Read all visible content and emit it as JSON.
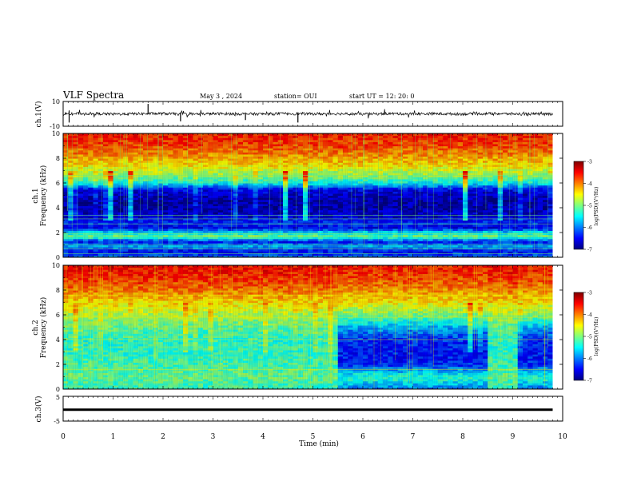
{
  "header": {
    "title": "VLF Spectra",
    "date": "May 3  , 2024",
    "station": "station= OUI",
    "start": "start  UT  =   12: 20: 0"
  },
  "colors": {
    "colormap": [
      "#00007f",
      "#0000ff",
      "#007fff",
      "#00ffff",
      "#7fff7f",
      "#ffff00",
      "#ff7f00",
      "#ff0000",
      "#7f0000"
    ]
  },
  "chart_data": [
    {
      "type": "line",
      "panel": "ch1-waveform",
      "ylabel": "ch.1(V)",
      "ylim": [
        -10,
        10
      ],
      "yticks": [
        "10",
        "-10"
      ],
      "xlim": [
        0,
        10
      ],
      "x": [
        0,
        0.5,
        1,
        1.5,
        2,
        2.5,
        3,
        3.5,
        4,
        4.5,
        5,
        5.5,
        6,
        6.5,
        7,
        7.5,
        8,
        8.5,
        9,
        9.5,
        9.8
      ],
      "y": [
        0,
        0.3,
        -0.2,
        0.1,
        0.2,
        -0.3,
        0.1,
        0,
        -0.1,
        0.2,
        0,
        0.1,
        -0.2,
        0.2,
        0,
        0.1,
        -0.1,
        0.2,
        0,
        -0.1,
        0
      ],
      "spikes": [
        {
          "x": 0.12,
          "y": -7
        },
        {
          "x": 1.7,
          "y": 8
        },
        {
          "x": 2.35,
          "y": -6
        },
        {
          "x": 3.65,
          "y": -5
        },
        {
          "x": 4.7,
          "y": -7
        }
      ]
    },
    {
      "type": "heatmap",
      "panel": "ch1-spectrogram",
      "ylabel_line1": "ch.1",
      "ylabel_line2": "Frequency (kHz)",
      "ylim": [
        0,
        10
      ],
      "yticks": [
        "0",
        "2",
        "4",
        "6",
        "8",
        "10"
      ],
      "xlim": [
        0,
        9.8
      ],
      "colorbar": {
        "label": "log(PSD)(V²/Hz)",
        "range": [
          -7,
          -3
        ],
        "ticks": [
          "-3",
          "-4",
          "-5",
          "-6",
          "-7"
        ]
      },
      "profile_khz": [
        0,
        0.5,
        0.9,
        1.3,
        1.7,
        2.0,
        2.4,
        2.8,
        3.2,
        3.6,
        4.0,
        4.5,
        5.0,
        5.5,
        6.0,
        6.5,
        7.0,
        7.5,
        8.0,
        8.5,
        9.0,
        10.0
      ],
      "profile_log_psd": [
        -6.0,
        -6.5,
        -5.8,
        -6.4,
        -5.0,
        -5.5,
        -6.5,
        -6.3,
        -6.6,
        -6.7,
        -6.8,
        -6.8,
        -6.7,
        -6.5,
        -5.5,
        -5.0,
        -4.7,
        -4.4,
        -4.2,
        -4.0,
        -3.8,
        -3.6
      ]
    },
    {
      "type": "heatmap",
      "panel": "ch2-spectrogram",
      "ylabel_line1": "ch.2",
      "ylabel_line2": "Frequency (kHz)",
      "ylim": [
        0,
        10
      ],
      "yticks": [
        "0",
        "2",
        "4",
        "6",
        "8",
        "10"
      ],
      "xlim": [
        0,
        9.8
      ],
      "colorbar": {
        "label": "log(PSD)(V²/Hz)",
        "range": [
          -7,
          -3
        ],
        "ticks": [
          "-3",
          "-4",
          "-5",
          "-6",
          "-7"
        ]
      },
      "quiet_intervals_min": [
        [
          5.45,
          8.45
        ],
        [
          9.1,
          9.8
        ]
      ],
      "profile_khz": [
        0,
        1.0,
        2.0,
        3.0,
        4.0,
        5.0,
        6.0,
        7.0,
        8.0,
        9.0,
        10.0
      ],
      "profile_log_psd_active": [
        -5.3,
        -5.1,
        -5.2,
        -5.3,
        -5.3,
        -5.1,
        -4.8,
        -4.4,
        -4.0,
        -3.7,
        -3.5
      ],
      "profile_log_psd_quiet": [
        -6.0,
        -5.3,
        -6.3,
        -6.4,
        -6.3,
        -5.8,
        -5.0,
        -4.5,
        -4.1,
        -3.8,
        -3.6
      ]
    },
    {
      "type": "line",
      "panel": "ch3-waveform",
      "ylabel": "ch.3(V)",
      "ylim": [
        -5,
        5
      ],
      "yticks": [
        "5",
        "-5"
      ],
      "xlim": [
        0,
        10
      ],
      "x": [
        0,
        9.8
      ],
      "y": [
        -0.4,
        -0.4
      ],
      "xlabel": "Time  (min)",
      "xticks": [
        "0",
        "1",
        "2",
        "3",
        "4",
        "5",
        "6",
        "7",
        "8",
        "9",
        "10"
      ]
    }
  ]
}
